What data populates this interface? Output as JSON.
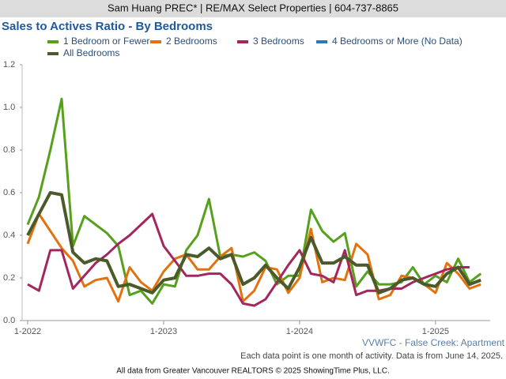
{
  "chart_data": {
    "type": "line",
    "header": "Sam Huang PREC* | RE/MAX Select Properties | 604-737-8865",
    "title": "Sales to Actives Ratio - By Bedrooms",
    "annotation": "VVWFC - False Creek: Apartment",
    "note": "Each data point is one month of activity. Data is from June 14, 2025.",
    "source": "All data from Greater Vancouver REALTORS © 2025 ShowingTime Plus, LLC.",
    "categories": [
      "1-2022",
      null,
      null,
      null,
      null,
      null,
      null,
      null,
      null,
      null,
      null,
      null,
      "1-2023",
      null,
      null,
      null,
      null,
      null,
      null,
      null,
      null,
      null,
      null,
      null,
      "1-2024",
      null,
      null,
      null,
      null,
      null,
      null,
      null,
      null,
      null,
      null,
      null,
      "1-2025",
      null,
      null,
      null,
      null
    ],
    "ylim": [
      0,
      1.2
    ],
    "yticks": [
      {
        "value": 0,
        "label": "0.0"
      },
      0.2,
      0.4,
      0.6,
      0.8,
      {
        "value": 1,
        "label": "1.0"
      },
      1.2
    ],
    "grid": false,
    "series": [
      {
        "name": "1 Bedroom or Fewer",
        "color": "#55a01c",
        "values": [
          0.45,
          0.58,
          0.8,
          1.04,
          0.35,
          0.49,
          0.45,
          0.41,
          0.35,
          0.12,
          0.14,
          0.08,
          0.17,
          0.16,
          0.33,
          0.4,
          0.57,
          0.3,
          0.31,
          0.3,
          0.32,
          0.28,
          0.17,
          0.21,
          0.21,
          0.52,
          0.42,
          0.37,
          0.41,
          0.16,
          0.23,
          0.17,
          0.17,
          0.18,
          0.25,
          0.17,
          0.21,
          0.18,
          0.29,
          0.18,
          0.22
        ]
      },
      {
        "name": "2 Bedrooms",
        "color": "#e2720f",
        "values": [
          0.36,
          0.5,
          0.42,
          0.34,
          0.28,
          0.16,
          0.19,
          0.2,
          0.09,
          0.25,
          0.18,
          0.14,
          0.23,
          0.29,
          0.31,
          0.24,
          0.24,
          0.3,
          0.34,
          0.09,
          0.14,
          0.25,
          0.24,
          0.13,
          0.2,
          0.43,
          0.18,
          0.2,
          0.19,
          0.36,
          0.31,
          0.1,
          0.12,
          0.21,
          0.2,
          0.17,
          0.13,
          0.27,
          0.22,
          0.15,
          0.17
        ]
      },
      {
        "name": "3 Bedrooms",
        "color": "#a3265e",
        "values": [
          0.17,
          0.14,
          0.33,
          0.33,
          0.15,
          0.21,
          0.27,
          0.31,
          0.36,
          0.4,
          0.45,
          0.5,
          0.35,
          0.28,
          0.21,
          0.21,
          0.22,
          0.22,
          0.17,
          0.08,
          0.07,
          0.1,
          0.18,
          0.26,
          0.33,
          0.22,
          0.21,
          0.18,
          0.33,
          0.12,
          0.14,
          0.14,
          0.15,
          0.15,
          0.18,
          0.2,
          0.22,
          0.24,
          0.25,
          0.25,
          null
        ]
      },
      {
        "name": "4 Bedrooms or More (No Data)",
        "color": "#2a7ab8",
        "values": [
          null,
          null,
          null,
          null,
          null,
          null,
          null,
          null,
          null,
          null,
          null,
          null,
          null,
          null,
          null,
          null,
          null,
          null,
          null,
          null,
          null,
          null,
          null,
          null,
          null,
          null,
          null,
          null,
          null,
          null,
          null,
          null,
          null,
          null,
          null,
          null,
          null,
          null,
          null,
          null,
          null
        ]
      },
      {
        "name": "All Bedrooms",
        "color": "#4b5a2a",
        "values": [
          0.4,
          0.5,
          0.6,
          0.59,
          0.32,
          0.27,
          0.29,
          0.28,
          0.16,
          0.17,
          0.15,
          0.13,
          0.19,
          0.2,
          0.31,
          0.3,
          0.34,
          0.29,
          0.31,
          0.17,
          0.2,
          0.26,
          0.2,
          0.15,
          0.25,
          0.39,
          0.27,
          0.27,
          0.3,
          0.26,
          0.26,
          0.13,
          0.15,
          0.19,
          0.2,
          0.17,
          0.16,
          0.22,
          0.25,
          0.17,
          0.19
        ]
      }
    ]
  }
}
